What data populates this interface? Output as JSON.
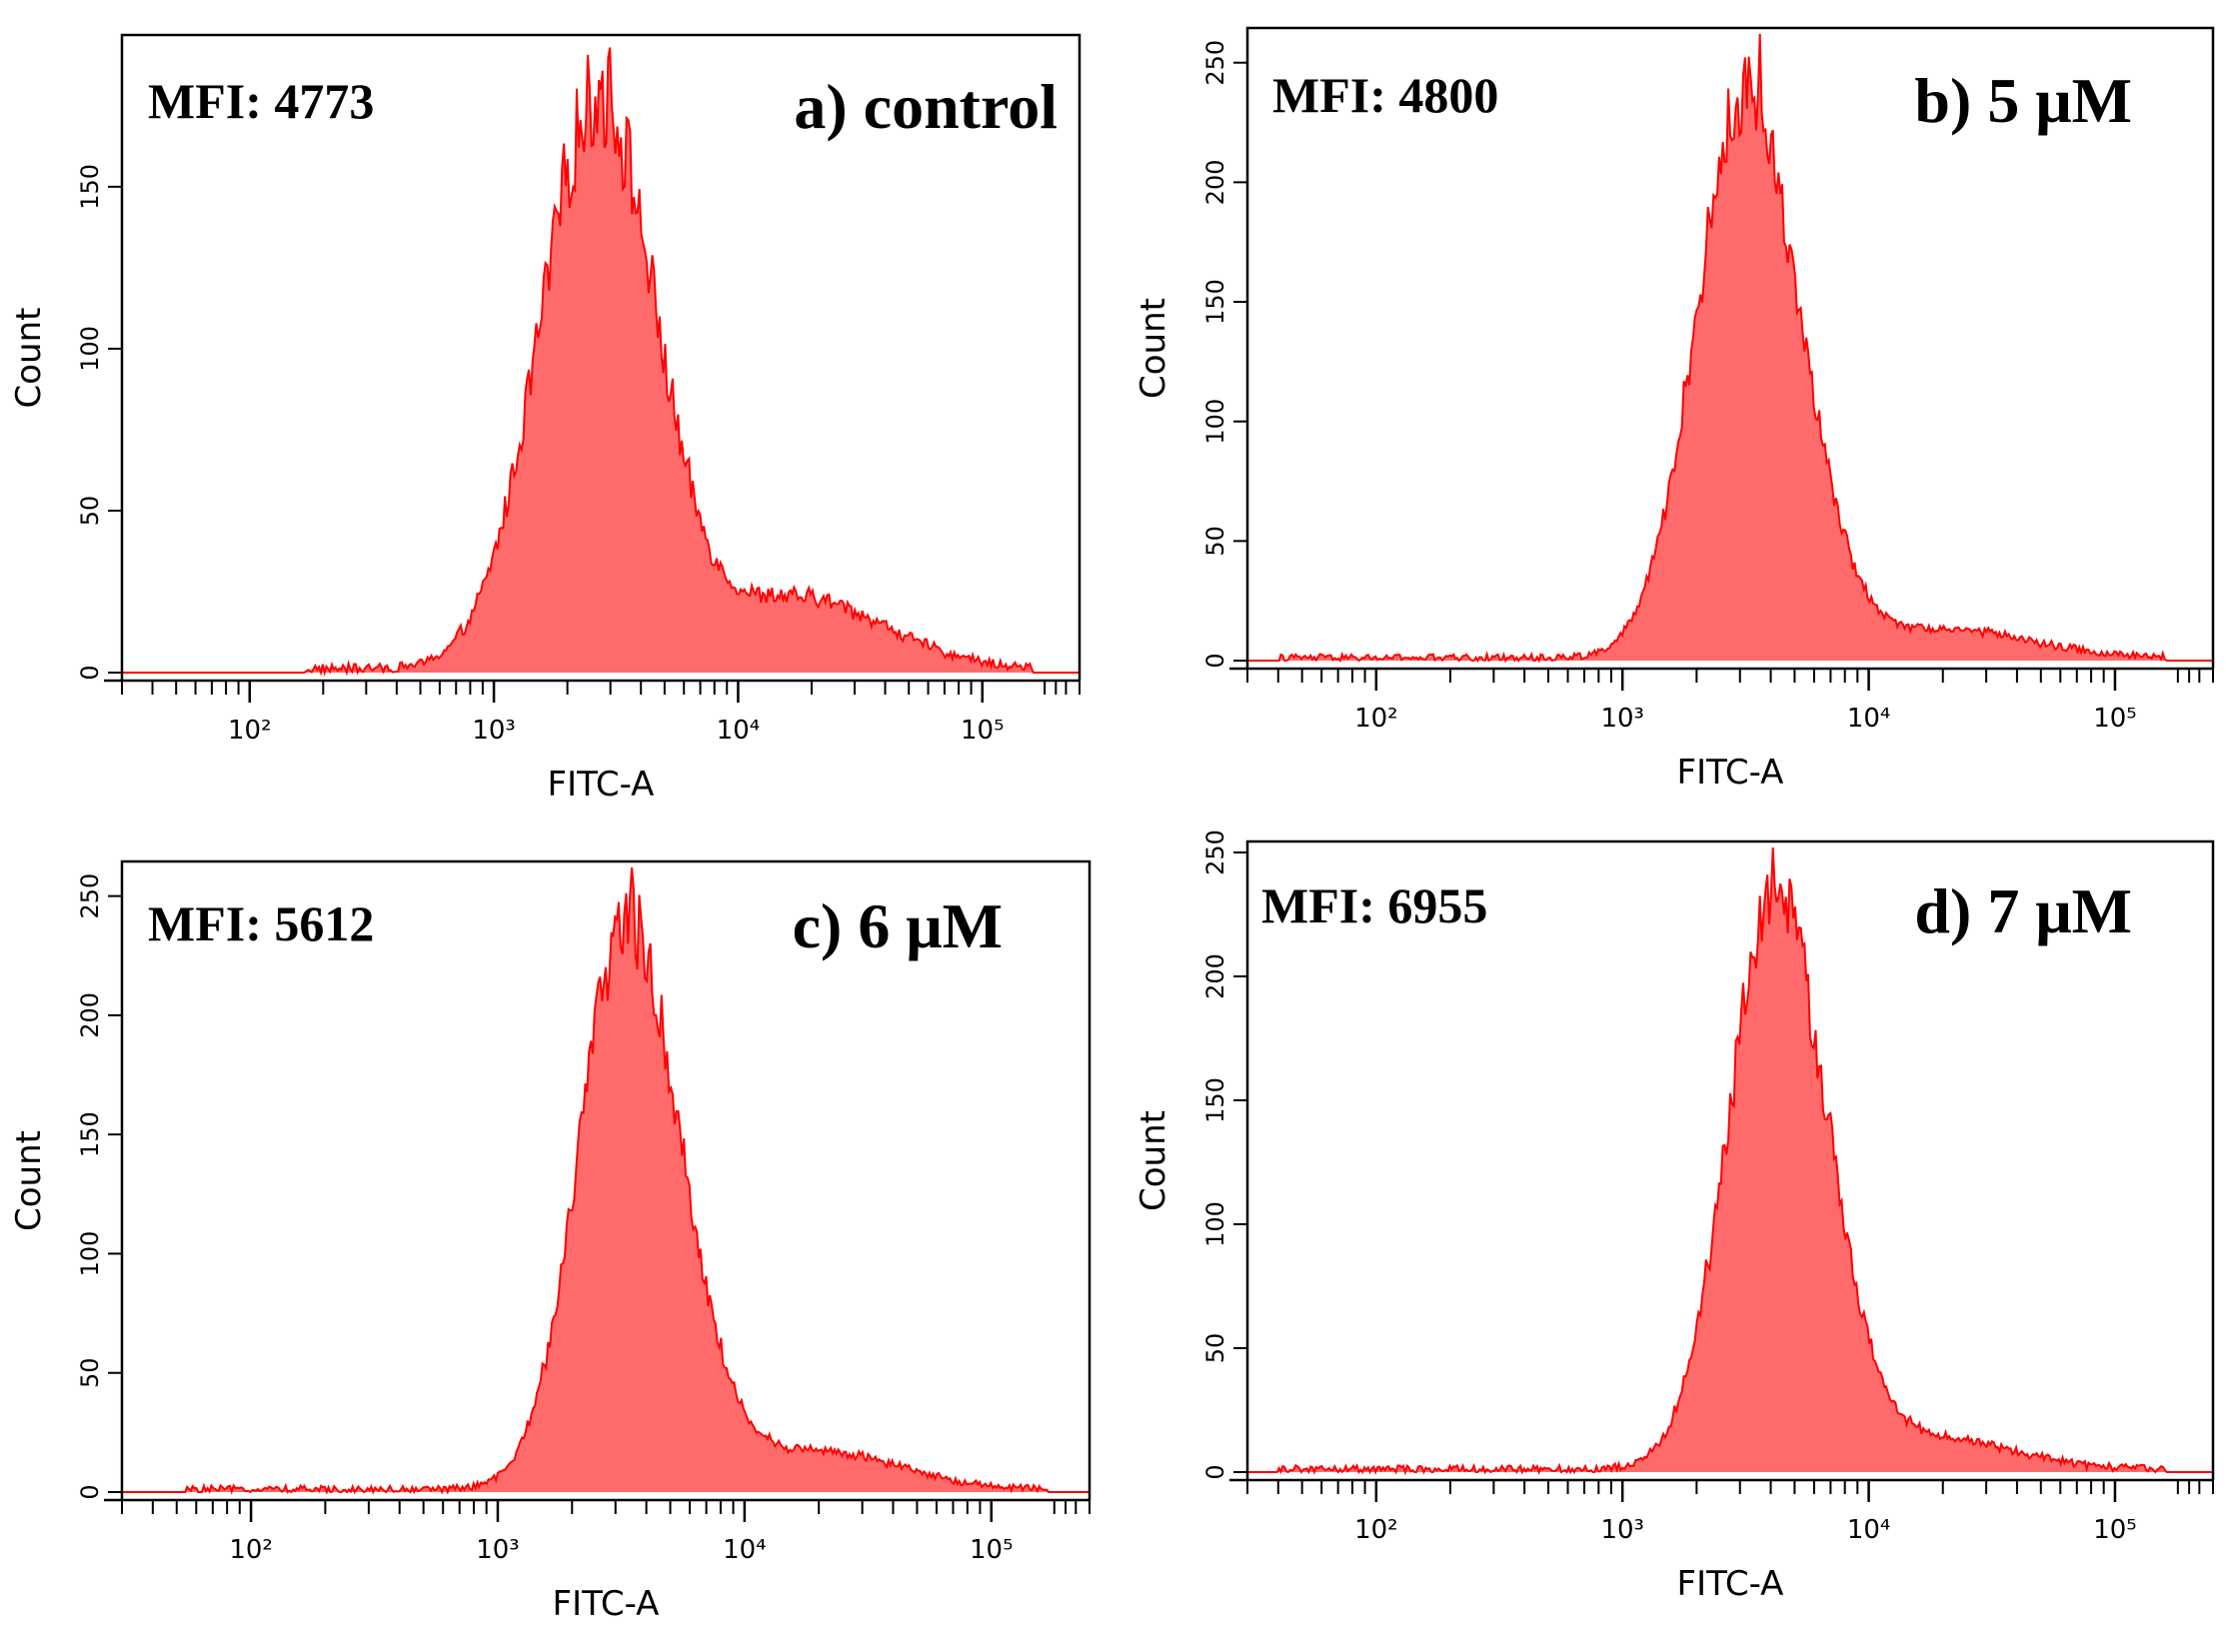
{
  "chart_data": [
    {
      "type": "area",
      "label": "a) control",
      "mfi_text": "MFI: 4773",
      "xlabel": "FITC-A",
      "ylabel": "Count",
      "x_scale": "log",
      "x_range": [
        30,
        250000
      ],
      "ylim": [
        0,
        195
      ],
      "yticks": [
        0,
        50,
        100,
        150
      ],
      "xtick_labels": [
        "10²",
        "10³",
        "10⁴",
        "10⁵"
      ],
      "peak": {
        "x": [
          2800,
          3200
        ],
        "y": 193
      },
      "shape": {
        "mu": 3.43,
        "sl": 0.24,
        "sr": 0.23,
        "peak": 176,
        "tail": {
          "amp": 22,
          "mu": 4.25,
          "s": 0.35
        },
        "start": 170,
        "end": 160000,
        "noise": 0.09
      },
      "series": [
        {
          "x": [
            200,
            400,
            700,
            1000,
            1500,
            2000,
            2800,
            4000,
            5500,
            7000,
            10000,
            15000,
            20000,
            40000,
            100000
          ],
          "y": [
            2,
            6,
            25,
            70,
            135,
            165,
            185,
            160,
            95,
            45,
            28,
            20,
            14,
            6,
            1
          ]
        }
      ],
      "color": "#ff6b6b",
      "line_color": "#ff0000"
    },
    {
      "type": "area",
      "label": "b) 5 μM",
      "mfi_text": "MFI: 4800",
      "xlabel": "FITC-A",
      "ylabel": "Count",
      "x_scale": "log",
      "x_range": [
        30,
        250000
      ],
      "ylim": [
        0,
        262
      ],
      "yticks": [
        0,
        50,
        100,
        150,
        200,
        250
      ],
      "xtick_labels": [
        "10²",
        "10³",
        "10⁴",
        "10⁵"
      ],
      "peak": {
        "x": [
          3300,
          4000
        ],
        "y": 262
      },
      "shape": {
        "mu": 3.5,
        "sl": 0.2,
        "sr": 0.22,
        "peak": 235,
        "tail": {
          "amp": 12,
          "mu": 4.3,
          "s": 0.35
        },
        "start": 40,
        "end": 160000,
        "noise": 0.07
      },
      "series": [
        {
          "x": [
            40,
            400,
            700,
            1000,
            1500,
            2000,
            3000,
            3700,
            5000,
            7000,
            10000,
            15000,
            20000,
            40000,
            150000
          ],
          "y": [
            1,
            2,
            8,
            45,
            110,
            170,
            230,
            258,
            180,
            110,
            45,
            20,
            12,
            5,
            1
          ]
        }
      ],
      "color": "#ff6b6b",
      "line_color": "#ff0000"
    },
    {
      "type": "area",
      "label": "c) 6 μM",
      "mfi_text": "MFI: 5612",
      "xlabel": "FITC-A",
      "ylabel": "Count",
      "x_scale": "log",
      "x_range": [
        30,
        250000
      ],
      "ylim": [
        0,
        262
      ],
      "yticks": [
        0,
        50,
        100,
        150,
        200,
        250
      ],
      "xtick_labels": [
        "10²",
        "10³",
        "10⁴",
        "10⁵"
      ],
      "peak": {
        "x": [
          3200,
          3800
        ],
        "y": 262
      },
      "shape": {
        "mu": 3.52,
        "sl": 0.19,
        "sr": 0.22,
        "peak": 238,
        "tail": {
          "amp": 16,
          "mu": 4.3,
          "s": 0.32
        },
        "start": 55,
        "end": 170000,
        "noise": 0.07
      },
      "series": [
        {
          "x": [
            60,
            500,
            800,
            1000,
            1500,
            2000,
            3000,
            3500,
            5000,
            7000,
            10000,
            15000,
            20000,
            40000,
            150000
          ],
          "y": [
            1,
            3,
            12,
            45,
            120,
            180,
            240,
            258,
            190,
            120,
            55,
            25,
            14,
            6,
            1
          ]
        }
      ],
      "color": "#ff6b6b",
      "line_color": "#ff0000"
    },
    {
      "type": "area",
      "label": "d) 7 μM",
      "mfi_text": "MFI: 6955",
      "xlabel": "FITC-A",
      "ylabel": "Count",
      "x_scale": "log",
      "x_range": [
        30,
        250000
      ],
      "ylim": [
        0,
        252
      ],
      "yticks": [
        0,
        50,
        100,
        150,
        200,
        250
      ],
      "xtick_labels": [
        "10²",
        "10³",
        "10⁴",
        "10⁵"
      ],
      "peak": {
        "x": [
          3700,
          4500
        ],
        "y": 252
      },
      "shape": {
        "mu": 3.62,
        "sl": 0.19,
        "sr": 0.21,
        "peak": 232,
        "tail": {
          "amp": 12,
          "mu": 4.3,
          "s": 0.3
        },
        "start": 40,
        "end": 160000,
        "noise": 0.07
      },
      "series": [
        {
          "x": [
            40,
            500,
            800,
            1000,
            1500,
            2500,
            3500,
            4200,
            6000,
            8000,
            10000,
            15000,
            20000,
            40000,
            150000
          ],
          "y": [
            1,
            2,
            6,
            20,
            70,
            150,
            225,
            250,
            200,
            140,
            80,
            30,
            14,
            5,
            1
          ]
        }
      ],
      "color": "#ff6b6b",
      "line_color": "#ff0000"
    }
  ]
}
